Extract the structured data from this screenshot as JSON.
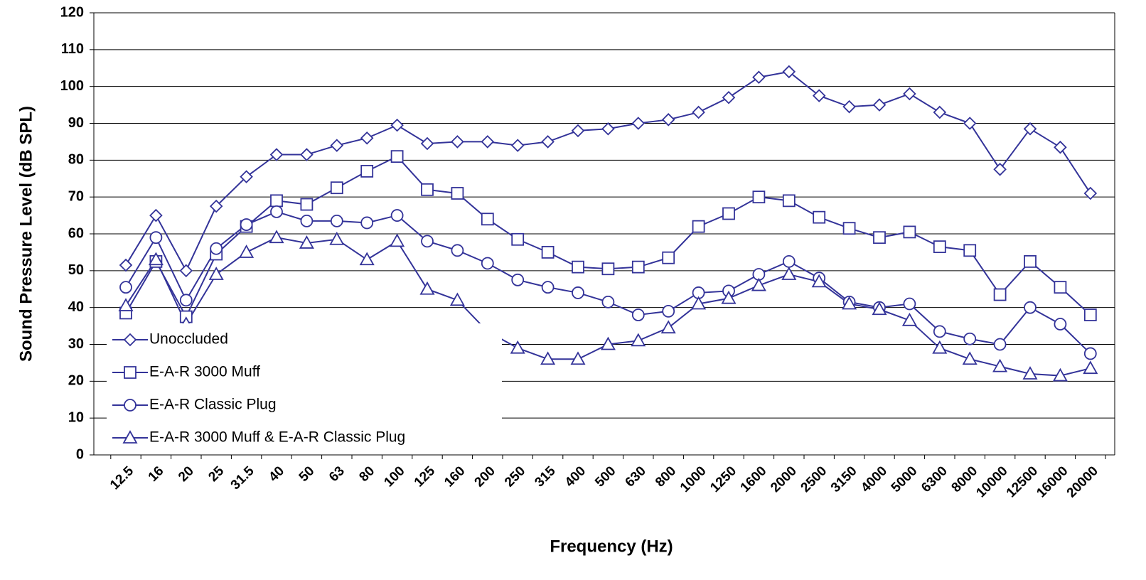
{
  "chart_data": {
    "type": "line",
    "x_label": "Frequency (Hz)",
    "y_label": "Sound Pressure Level (dB SPL)",
    "categories": [
      "12.5",
      "16",
      "20",
      "25",
      "31.5",
      "40",
      "50",
      "63",
      "80",
      "100",
      "125",
      "160",
      "200",
      "250",
      "315",
      "400",
      "500",
      "630",
      "800",
      "1000",
      "1250",
      "1600",
      "2000",
      "2500",
      "3150",
      "4000",
      "5000",
      "6300",
      "8000",
      "10000",
      "12500",
      "16000",
      "20000"
    ],
    "series": [
      {
        "name": "Unoccluded",
        "color": "#333399",
        "marker": "diamond",
        "values": [
          51.5,
          65,
          50,
          67.5,
          75.5,
          81.5,
          81.5,
          84,
          86,
          89.5,
          84.5,
          85,
          85,
          84,
          85,
          88,
          88.5,
          90,
          91,
          93,
          97,
          102.5,
          104,
          97.5,
          94.5,
          95,
          98,
          93,
          90,
          77.5,
          88.5,
          83.5,
          71
        ]
      },
      {
        "name": "E-A-R 3000 Muff",
        "color": "#333399",
        "marker": "square",
        "values": [
          38.5,
          52.5,
          37.5,
          54.5,
          62,
          69,
          68,
          72.5,
          77,
          81,
          72,
          71,
          64,
          58.5,
          55,
          51,
          50.5,
          51,
          53.5,
          62,
          65.5,
          70,
          69,
          64.5,
          61.5,
          59,
          60.5,
          56.5,
          55.5,
          43.5,
          52.5,
          45.5,
          38
        ]
      },
      {
        "name": "E-A-R Classic Plug",
        "color": "#333399",
        "marker": "circle",
        "values": [
          45.5,
          59,
          42,
          56,
          62.5,
          66,
          63.5,
          63.5,
          63,
          65,
          58,
          55.5,
          52,
          47.5,
          45.5,
          44,
          41.5,
          38,
          39,
          44,
          44.5,
          49,
          52.5,
          48,
          41.5,
          40,
          41,
          33.5,
          31.5,
          30,
          40,
          35.5,
          27.5
        ]
      },
      {
        "name": "E-A-R 3000 Muff &  E-A-R Classic Plug",
        "color": "#333399",
        "marker": "triangle",
        "values": [
          40.5,
          53,
          35.5,
          49,
          55,
          59,
          57.5,
          58.5,
          53,
          58,
          45,
          42,
          33.5,
          29,
          26,
          26,
          30,
          31,
          34.5,
          41,
          42.5,
          46,
          49,
          47,
          41,
          39.5,
          36.5,
          29,
          26,
          24,
          22,
          21.5,
          23.5
        ]
      }
    ],
    "ylim": [
      0,
      120
    ],
    "yticks": [
      0,
      10,
      20,
      30,
      40,
      50,
      60,
      70,
      80,
      90,
      100,
      110,
      120
    ],
    "grid": true,
    "legend": "lower left"
  }
}
